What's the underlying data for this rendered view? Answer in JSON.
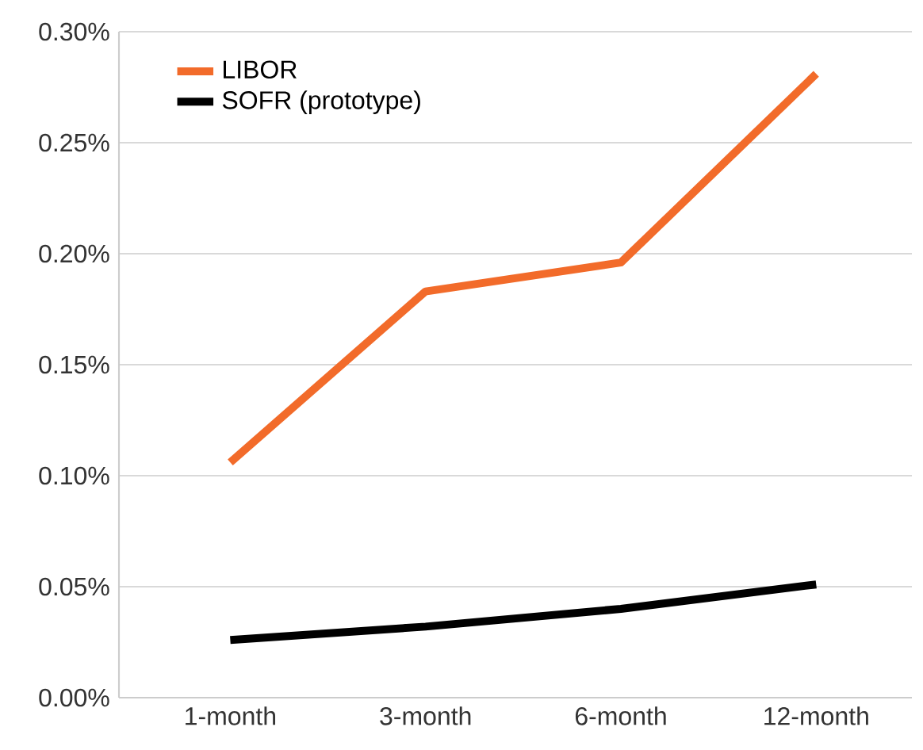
{
  "chart_data": {
    "type": "line",
    "categories": [
      "1-month",
      "3-month",
      "6-month",
      "12-month"
    ],
    "series": [
      {
        "name": "LIBOR",
        "color": "#f26b2a",
        "values": [
          0.106,
          0.183,
          0.196,
          0.281
        ]
      },
      {
        "name": "SOFR (prototype)",
        "color": "#000000",
        "values": [
          0.026,
          0.032,
          0.04,
          0.051
        ]
      }
    ],
    "ylim": [
      0,
      0.3
    ],
    "yticks": [
      {
        "value": 0,
        "label": "0.00%"
      },
      {
        "value": 0.05,
        "label": "0.05%"
      },
      {
        "value": 0.1,
        "label": "0.10%"
      },
      {
        "value": 0.15,
        "label": "0.15%"
      },
      {
        "value": 0.2,
        "label": "0.20%"
      },
      {
        "value": 0.25,
        "label": "0.25%"
      },
      {
        "value": 0.3,
        "label": "0.30%"
      }
    ],
    "grid": "y",
    "legend": "top left",
    "marker": "none",
    "line_style": "solid"
  }
}
